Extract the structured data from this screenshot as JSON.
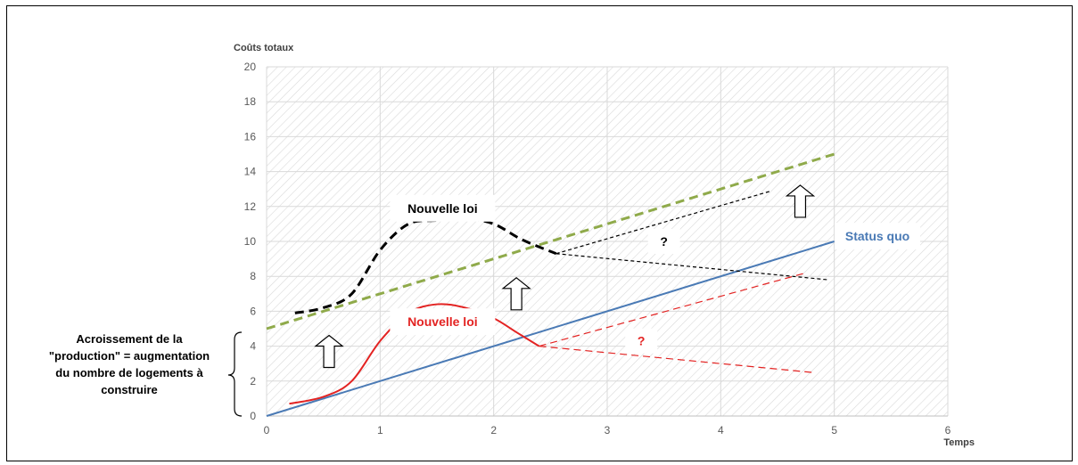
{
  "chart_data": {
    "type": "line",
    "title": "",
    "xlabel": "Temps",
    "ylabel": "Coûts totaux",
    "xlim": [
      0,
      6
    ],
    "ylim": [
      0,
      20
    ],
    "x_ticks": [
      "0",
      "1",
      "2",
      "3",
      "4",
      "5",
      "6"
    ],
    "y_ticks": [
      "0",
      "2",
      "4",
      "6",
      "8",
      "10",
      "12",
      "14",
      "16",
      "18",
      "20"
    ],
    "grid": true,
    "plot_background": "hatched",
    "series": [
      {
        "name": "Status quo",
        "color": "#4a7ab5",
        "style": "solid",
        "x": [
          0,
          5
        ],
        "y": [
          0,
          10
        ]
      },
      {
        "name": "",
        "color": "#8faa4a",
        "style": "dashed",
        "x": [
          0,
          5
        ],
        "y": [
          5,
          15
        ]
      },
      {
        "name": "Nouvelle loi",
        "color": "#000000",
        "style": "dashed",
        "x": [
          0.25,
          0.5,
          0.75,
          1.0,
          1.25,
          1.5,
          1.75,
          2.0,
          2.25,
          2.55
        ],
        "y": [
          5.9,
          6.2,
          7.0,
          9.5,
          11.0,
          11.2,
          11.3,
          11.0,
          10.1,
          9.3
        ]
      },
      {
        "name": "",
        "color": "#000000",
        "style": "dotted",
        "x": [
          2.55,
          4.45
        ],
        "y": [
          9.3,
          12.9
        ]
      },
      {
        "name": "",
        "color": "#000000",
        "style": "dotted",
        "x": [
          2.55,
          4.95
        ],
        "y": [
          9.3,
          7.8
        ]
      },
      {
        "name": "Nouvelle loi",
        "color": "#e32322",
        "style": "solid",
        "x": [
          0.2,
          0.5,
          0.75,
          1.0,
          1.25,
          1.5,
          1.75,
          2.0,
          2.2,
          2.4
        ],
        "y": [
          0.7,
          1.1,
          2.0,
          4.3,
          5.9,
          6.4,
          6.2,
          5.6,
          4.8,
          4.0
        ]
      },
      {
        "name": "",
        "color": "#e32322",
        "style": "dashed-thin",
        "x": [
          2.4,
          4.75
        ],
        "y": [
          4.0,
          8.2
        ]
      },
      {
        "name": "",
        "color": "#e32322",
        "style": "dashed-thin",
        "x": [
          2.4,
          4.8
        ],
        "y": [
          4.0,
          2.5
        ]
      }
    ],
    "annotations": {
      "black_label": "Nouvelle loi",
      "black_question": "?",
      "red_label": "Nouvelle loi",
      "red_question": "?",
      "status_label": "Status quo"
    },
    "up_arrows": [
      {
        "x": 0.55,
        "y": 3.7
      },
      {
        "x": 2.2,
        "y": 7.0
      },
      {
        "x": 4.7,
        "y": 12.3
      }
    ]
  },
  "side_note": {
    "line1": "Acroissement de la",
    "line2": "\"production\" = augmentation",
    "line3": "du nombre de logements à",
    "line4": "construire"
  }
}
